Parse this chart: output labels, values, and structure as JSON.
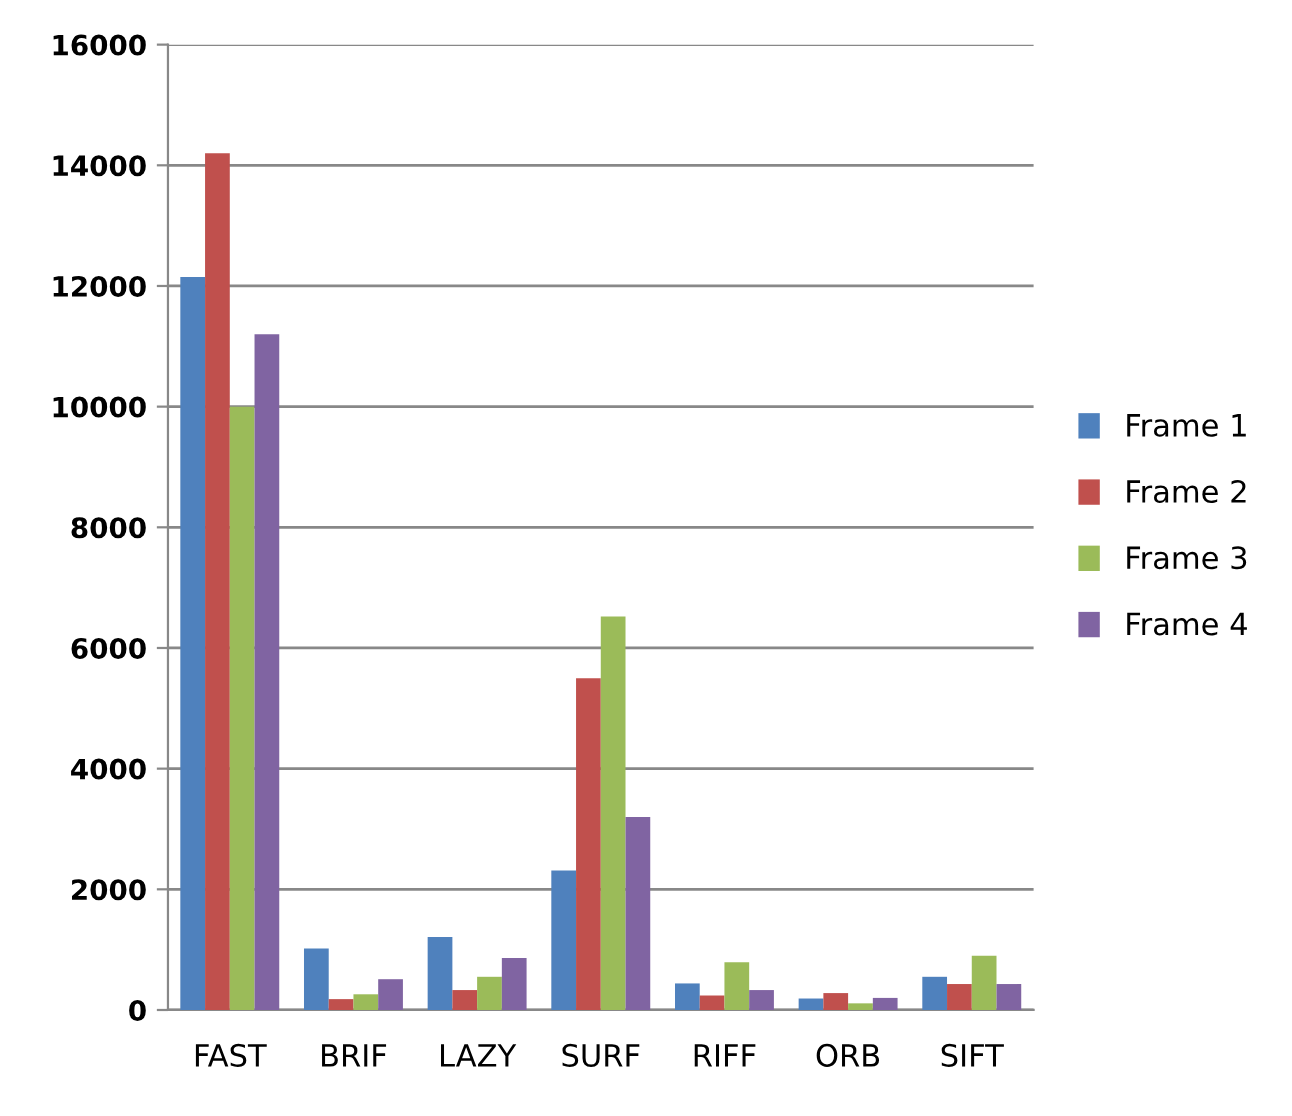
{
  "chart_data": {
    "type": "bar",
    "categories": [
      "FAST",
      "BRIF",
      "LAZY",
      "SURF",
      "RIFF",
      "ORB",
      "SIFT"
    ],
    "series": [
      {
        "name": "Frame 1",
        "color": "#4f81bd",
        "values": [
          12150,
          1020,
          1210,
          2310,
          440,
          190,
          550
        ]
      },
      {
        "name": "Frame 2",
        "color": "#c0504d",
        "values": [
          14200,
          180,
          330,
          5500,
          240,
          280,
          430
        ]
      },
      {
        "name": "Frame 3",
        "color": "#9bbb59",
        "values": [
          10000,
          260,
          550,
          6520,
          790,
          110,
          900
        ]
      },
      {
        "name": "Frame 4",
        "color": "#8064a2",
        "values": [
          11200,
          510,
          860,
          3200,
          330,
          200,
          430
        ]
      }
    ],
    "ylim": [
      0,
      16000
    ],
    "yticks": [
      0,
      2000,
      4000,
      6000,
      8000,
      10000,
      12000,
      14000,
      16000
    ],
    "grid": "y",
    "legend": "right"
  }
}
